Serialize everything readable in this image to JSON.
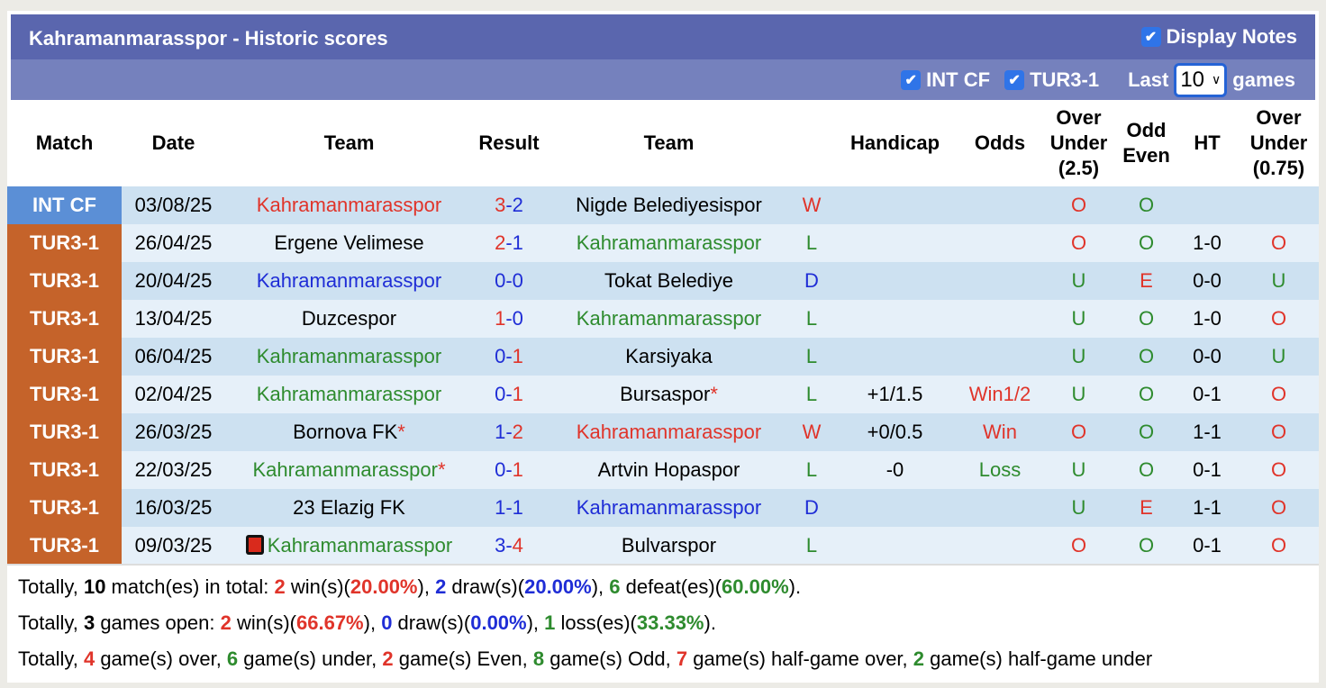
{
  "title": "Kahramanmarasspor - Historic scores",
  "display_notes": {
    "label": "Display Notes",
    "checked": true
  },
  "filters": [
    {
      "label": "INT CF",
      "checked": true
    },
    {
      "label": "TUR3-1",
      "checked": true
    }
  ],
  "last_label": "Last",
  "last_value": "10",
  "games_label": "games",
  "columns": [
    "Match",
    "Date",
    "Team",
    "Result",
    "Team",
    "",
    "Handicap",
    "Odds",
    "Over Under (2.5)",
    "Odd Even",
    "HT",
    "Over Under (0.75)"
  ],
  "colors": {
    "int_cf": "#5b8fd6",
    "tur3": "#c5632a",
    "red": "#e0342a",
    "blue": "#1f2dd6",
    "green": "#2e8b2e"
  },
  "rows": [
    {
      "comp": "INT CF",
      "date": "03/08/25",
      "home": "Kahramanmarasspor",
      "home_color": "red",
      "h": "3",
      "hc": "red",
      "a": "2",
      "ac": "blue",
      "away": "Nigde Belediyesispor",
      "away_color": "black",
      "wl": "W",
      "wlc": "red",
      "hcp": "",
      "odds": "",
      "oddsc": "",
      "ou": "O",
      "ouc": "red",
      "oe": "O",
      "oec": "green",
      "ht": "",
      "ou2": "",
      "ou2c": ""
    },
    {
      "comp": "TUR3-1",
      "date": "26/04/25",
      "home": "Ergene Velimese",
      "home_color": "black",
      "h": "2",
      "hc": "red",
      "a": "1",
      "ac": "blue",
      "away": "Kahramanmarasspor",
      "away_color": "green",
      "wl": "L",
      "wlc": "green",
      "hcp": "",
      "odds": "",
      "oddsc": "",
      "ou": "O",
      "ouc": "red",
      "oe": "O",
      "oec": "green",
      "ht": "1-0",
      "ou2": "O",
      "ou2c": "red"
    },
    {
      "comp": "TUR3-1",
      "date": "20/04/25",
      "home": "Kahramanmarasspor",
      "home_color": "blue",
      "h": "0",
      "hc": "blue",
      "a": "0",
      "ac": "blue",
      "away": "Tokat Belediye",
      "away_color": "black",
      "wl": "D",
      "wlc": "blue",
      "hcp": "",
      "odds": "",
      "oddsc": "",
      "ou": "U",
      "ouc": "green",
      "oe": "E",
      "oec": "red",
      "ht": "0-0",
      "ou2": "U",
      "ou2c": "green"
    },
    {
      "comp": "TUR3-1",
      "date": "13/04/25",
      "home": "Duzcespor",
      "home_color": "black",
      "h": "1",
      "hc": "red",
      "a": "0",
      "ac": "blue",
      "away": "Kahramanmarasspor",
      "away_color": "green",
      "wl": "L",
      "wlc": "green",
      "hcp": "",
      "odds": "",
      "oddsc": "",
      "ou": "U",
      "ouc": "green",
      "oe": "O",
      "oec": "green",
      "ht": "1-0",
      "ou2": "O",
      "ou2c": "red"
    },
    {
      "comp": "TUR3-1",
      "date": "06/04/25",
      "home": "Kahramanmarasspor",
      "home_color": "green",
      "h": "0",
      "hc": "blue",
      "a": "1",
      "ac": "red",
      "away": "Karsiyaka",
      "away_color": "black",
      "wl": "L",
      "wlc": "green",
      "hcp": "",
      "odds": "",
      "oddsc": "",
      "ou": "U",
      "ouc": "green",
      "oe": "O",
      "oec": "green",
      "ht": "0-0",
      "ou2": "U",
      "ou2c": "green"
    },
    {
      "comp": "TUR3-1",
      "date": "02/04/25",
      "home": "Kahramanmarasspor",
      "home_color": "green",
      "h": "0",
      "hc": "blue",
      "a": "1",
      "ac": "red",
      "away": "Bursaspor",
      "away_color": "black",
      "away_star": "*",
      "wl": "L",
      "wlc": "green",
      "hcp": "+1/1.5",
      "odds": "Win1/2",
      "oddsc": "red",
      "ou": "U",
      "ouc": "green",
      "oe": "O",
      "oec": "green",
      "ht": "0-1",
      "ou2": "O",
      "ou2c": "red"
    },
    {
      "comp": "TUR3-1",
      "date": "26/03/25",
      "home": "Bornova FK",
      "home_color": "black",
      "home_star": "*",
      "h": "1",
      "hc": "blue",
      "a": "2",
      "ac": "red",
      "away": "Kahramanmarasspor",
      "away_color": "red",
      "wl": "W",
      "wlc": "red",
      "hcp": "+0/0.5",
      "odds": "Win",
      "oddsc": "red",
      "ou": "O",
      "ouc": "red",
      "oe": "O",
      "oec": "green",
      "ht": "1-1",
      "ou2": "O",
      "ou2c": "red"
    },
    {
      "comp": "TUR3-1",
      "date": "22/03/25",
      "home": "Kahramanmarasspor",
      "home_color": "green",
      "home_star": "*",
      "h": "0",
      "hc": "blue",
      "a": "1",
      "ac": "red",
      "away": "Artvin Hopaspor",
      "away_color": "black",
      "wl": "L",
      "wlc": "green",
      "hcp": "-0",
      "odds": "Loss",
      "oddsc": "green",
      "ou": "U",
      "ouc": "green",
      "oe": "O",
      "oec": "green",
      "ht": "0-1",
      "ou2": "O",
      "ou2c": "red"
    },
    {
      "comp": "TUR3-1",
      "date": "16/03/25",
      "home": "23 Elazig FK",
      "home_color": "black",
      "h": "1",
      "hc": "blue",
      "a": "1",
      "ac": "blue",
      "away": "Kahramanmarasspor",
      "away_color": "blue",
      "wl": "D",
      "wlc": "blue",
      "hcp": "",
      "odds": "",
      "oddsc": "",
      "ou": "U",
      "ouc": "green",
      "oe": "E",
      "oec": "red",
      "ht": "1-1",
      "ou2": "O",
      "ou2c": "red"
    },
    {
      "comp": "TUR3-1",
      "date": "09/03/25",
      "home": "Kahramanmarasspor",
      "home_color": "green",
      "home_redcard": true,
      "h": "3",
      "hc": "blue",
      "a": "4",
      "ac": "red",
      "away": "Bulvarspor",
      "away_color": "black",
      "wl": "L",
      "wlc": "green",
      "hcp": "",
      "odds": "",
      "oddsc": "",
      "ou": "O",
      "ouc": "red",
      "oe": "O",
      "oec": "green",
      "ht": "0-1",
      "ou2": "O",
      "ou2c": "red"
    }
  ],
  "summary": [
    [
      [
        "Totally, ",
        "black"
      ],
      [
        "10",
        "bold"
      ],
      [
        " match(es) in total: ",
        "black"
      ],
      [
        "2",
        "red"
      ],
      [
        " win(s)(",
        "black"
      ],
      [
        "20.00%",
        "red"
      ],
      [
        "), ",
        "black"
      ],
      [
        "2",
        "blue"
      ],
      [
        " draw(s)(",
        "black"
      ],
      [
        "20.00%",
        "blue"
      ],
      [
        "), ",
        "black"
      ],
      [
        "6",
        "green"
      ],
      [
        " defeat(es)(",
        "black"
      ],
      [
        "60.00%",
        "green"
      ],
      [
        ").",
        "black"
      ]
    ],
    [
      [
        "Totally, ",
        "black"
      ],
      [
        "3",
        "bold"
      ],
      [
        " games open: ",
        "black"
      ],
      [
        "2",
        "red"
      ],
      [
        " win(s)(",
        "black"
      ],
      [
        "66.67%",
        "red"
      ],
      [
        "), ",
        "black"
      ],
      [
        "0",
        "blue"
      ],
      [
        " draw(s)(",
        "black"
      ],
      [
        "0.00%",
        "blue"
      ],
      [
        "), ",
        "black"
      ],
      [
        "1",
        "green"
      ],
      [
        " loss(es)(",
        "black"
      ],
      [
        "33.33%",
        "green"
      ],
      [
        ").",
        "black"
      ]
    ],
    [
      [
        "Totally, ",
        "black"
      ],
      [
        "4",
        "red"
      ],
      [
        " game(s) over, ",
        "black"
      ],
      [
        "6",
        "green"
      ],
      [
        " game(s) under, ",
        "black"
      ],
      [
        "2",
        "red"
      ],
      [
        " game(s) Even, ",
        "black"
      ],
      [
        "8",
        "green"
      ],
      [
        " game(s) Odd, ",
        "black"
      ],
      [
        "7",
        "red"
      ],
      [
        " game(s) half-game over, ",
        "black"
      ],
      [
        "2",
        "green"
      ],
      [
        " game(s) half-game under",
        "black"
      ]
    ]
  ]
}
